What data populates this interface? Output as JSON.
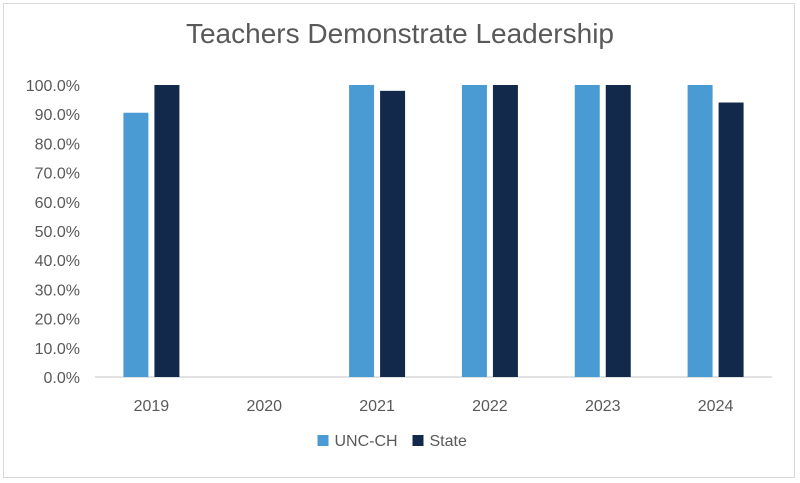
{
  "chart_data": {
    "type": "bar",
    "title": "Teachers Demonstrate Leadership",
    "xlabel": "",
    "ylabel": "",
    "categories": [
      "2019",
      "2020",
      "2021",
      "2022",
      "2023",
      "2024"
    ],
    "series": [
      {
        "name": "UNC-CH",
        "color": "#4a9bd4",
        "values": [
          90.5,
          null,
          100.0,
          100.0,
          100.0,
          100.0
        ]
      },
      {
        "name": "State",
        "color": "#13294b",
        "values": [
          100.0,
          null,
          98.0,
          100.0,
          100.0,
          94.0
        ]
      }
    ],
    "ylim": [
      0,
      100
    ],
    "yticks": [
      "0.0%",
      "10.0%",
      "20.0%",
      "30.0%",
      "40.0%",
      "50.0%",
      "60.0%",
      "70.0%",
      "80.0%",
      "90.0%",
      "100.0%"
    ],
    "grid": false,
    "legend": "bottom"
  }
}
